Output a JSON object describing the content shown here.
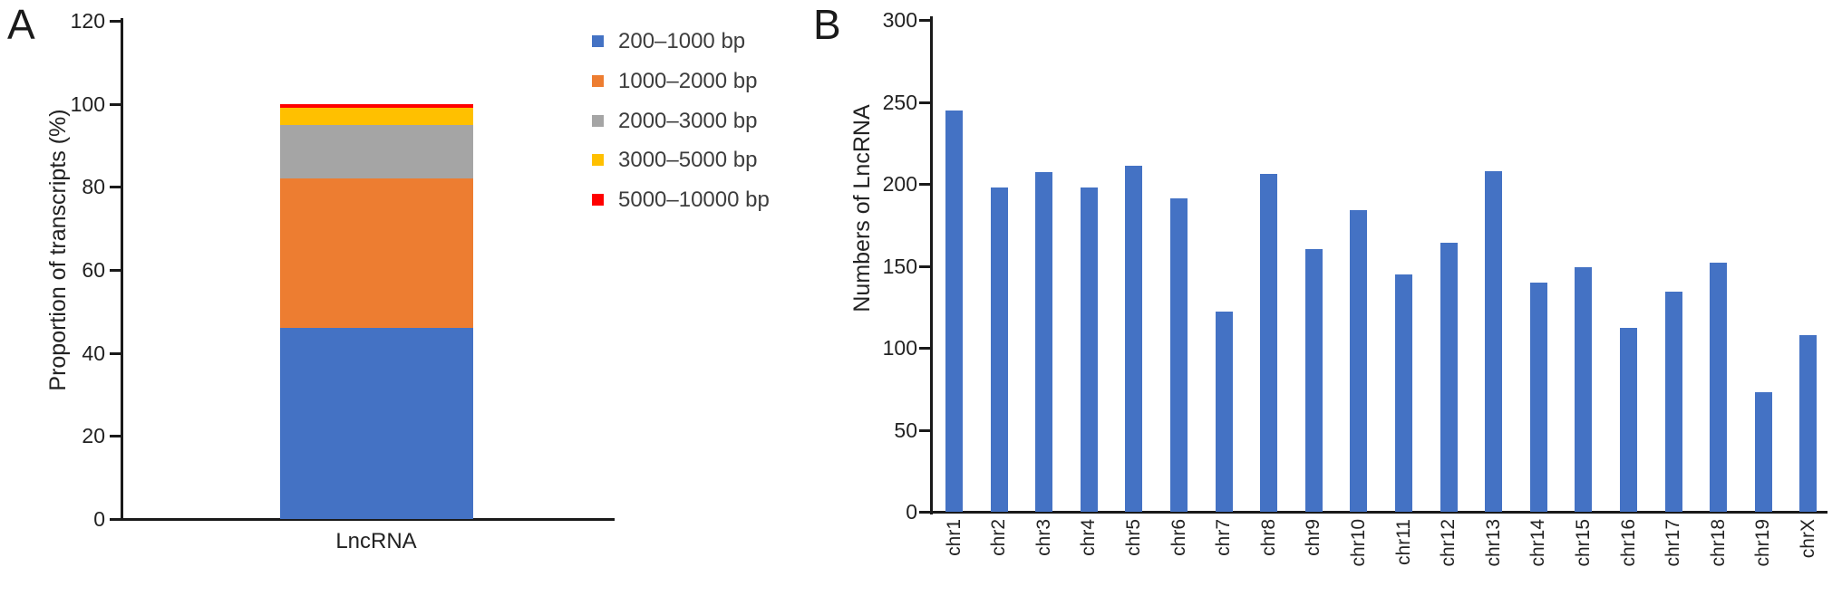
{
  "panels": {
    "a": {
      "letter": "A"
    },
    "b": {
      "letter": "B"
    }
  },
  "chart_data": [
    {
      "panel": "A",
      "type": "bar",
      "stacked": true,
      "title": "",
      "xlabel": "",
      "ylabel": "Proportion of transcripts (%)",
      "categories": [
        "LncRNA"
      ],
      "ylim": [
        0,
        120
      ],
      "yticks": [
        0,
        20,
        40,
        60,
        80,
        100,
        120
      ],
      "grid": false,
      "legend_position": "right of chart, top",
      "series": [
        {
          "name": "200–1000 bp",
          "color": "#4472C4",
          "values": [
            46
          ]
        },
        {
          "name": "1000–2000 bp",
          "color": "#ED7D31",
          "values": [
            36
          ]
        },
        {
          "name": "2000–3000 bp",
          "color": "#A5A5A5",
          "values": [
            13
          ]
        },
        {
          "name": "3000–5000 bp",
          "color": "#FFC000",
          "values": [
            4
          ]
        },
        {
          "name": "5000–10000 bp",
          "color": "#FF0000",
          "values": [
            1
          ]
        }
      ]
    },
    {
      "panel": "B",
      "type": "bar",
      "title": "",
      "xlabel": "",
      "ylabel": "Numbers of LncRNA",
      "categories": [
        "chr1",
        "chr2",
        "chr3",
        "chr4",
        "chr5",
        "chr6",
        "chr7",
        "chr8",
        "chr9",
        "chr10",
        "chr11",
        "chr12",
        "chr13",
        "chr14",
        "chr15",
        "chr16",
        "chr17",
        "chr18",
        "chr19",
        "chrX"
      ],
      "values": [
        245,
        198,
        207,
        198,
        211,
        191,
        122,
        206,
        160,
        184,
        145,
        164,
        208,
        140,
        149,
        112,
        134,
        152,
        73,
        108
      ],
      "bar_color": "#4472C4",
      "ylim": [
        0,
        300
      ],
      "yticks": [
        0,
        50,
        100,
        150,
        200,
        250,
        300
      ],
      "grid": false,
      "legend_position": "none"
    }
  ]
}
